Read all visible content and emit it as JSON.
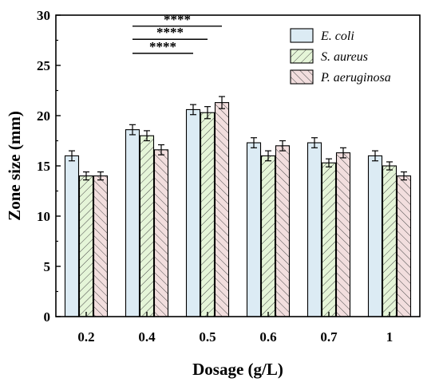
{
  "chart_data": {
    "type": "bar",
    "xlabel": "Dosage (g/L)",
    "ylabel": "Zone size (mm)",
    "ylim": [
      0,
      30
    ],
    "yticks": [
      0,
      5,
      10,
      15,
      20,
      25,
      30
    ],
    "grid": false,
    "legend_position": "top-right",
    "categories": [
      "0.2",
      "0.4",
      "0.5",
      "0.6",
      "0.7",
      "1"
    ],
    "series": [
      {
        "name": "E. coli",
        "values": [
          16.0,
          18.6,
          20.6,
          17.3,
          17.3,
          16.0
        ],
        "errors": [
          0.5,
          0.5,
          0.5,
          0.5,
          0.5,
          0.5
        ],
        "color": "#dcebf4",
        "pattern": "none"
      },
      {
        "name": "S. aureus",
        "values": [
          14.0,
          18.0,
          20.3,
          16.0,
          15.3,
          15.0
        ],
        "errors": [
          0.4,
          0.5,
          0.6,
          0.5,
          0.4,
          0.4
        ],
        "color": "#e5f5d8",
        "pattern": "diagonal-right"
      },
      {
        "name": "P. aeruginosa",
        "values": [
          14.0,
          16.6,
          21.3,
          17.0,
          16.3,
          14.0
        ],
        "errors": [
          0.4,
          0.5,
          0.6,
          0.5,
          0.5,
          0.4
        ],
        "color": "#f2dede",
        "pattern": "diagonal-left"
      }
    ],
    "significance": [
      {
        "label": "****",
        "from_category": "0.4",
        "to_category": "0.5",
        "from_series": "E. coli",
        "to_series": "P. aeruginosa",
        "level": 28.9
      },
      {
        "label": "****",
        "from_category": "0.4",
        "to_category": "0.5",
        "from_series": "E. coli",
        "to_series": "S. aureus",
        "level": 27.6
      },
      {
        "label": "****",
        "from_category": "0.4",
        "to_category": "0.5",
        "from_series": "E. coli",
        "to_series": "E. coli",
        "level": 26.2
      }
    ]
  }
}
